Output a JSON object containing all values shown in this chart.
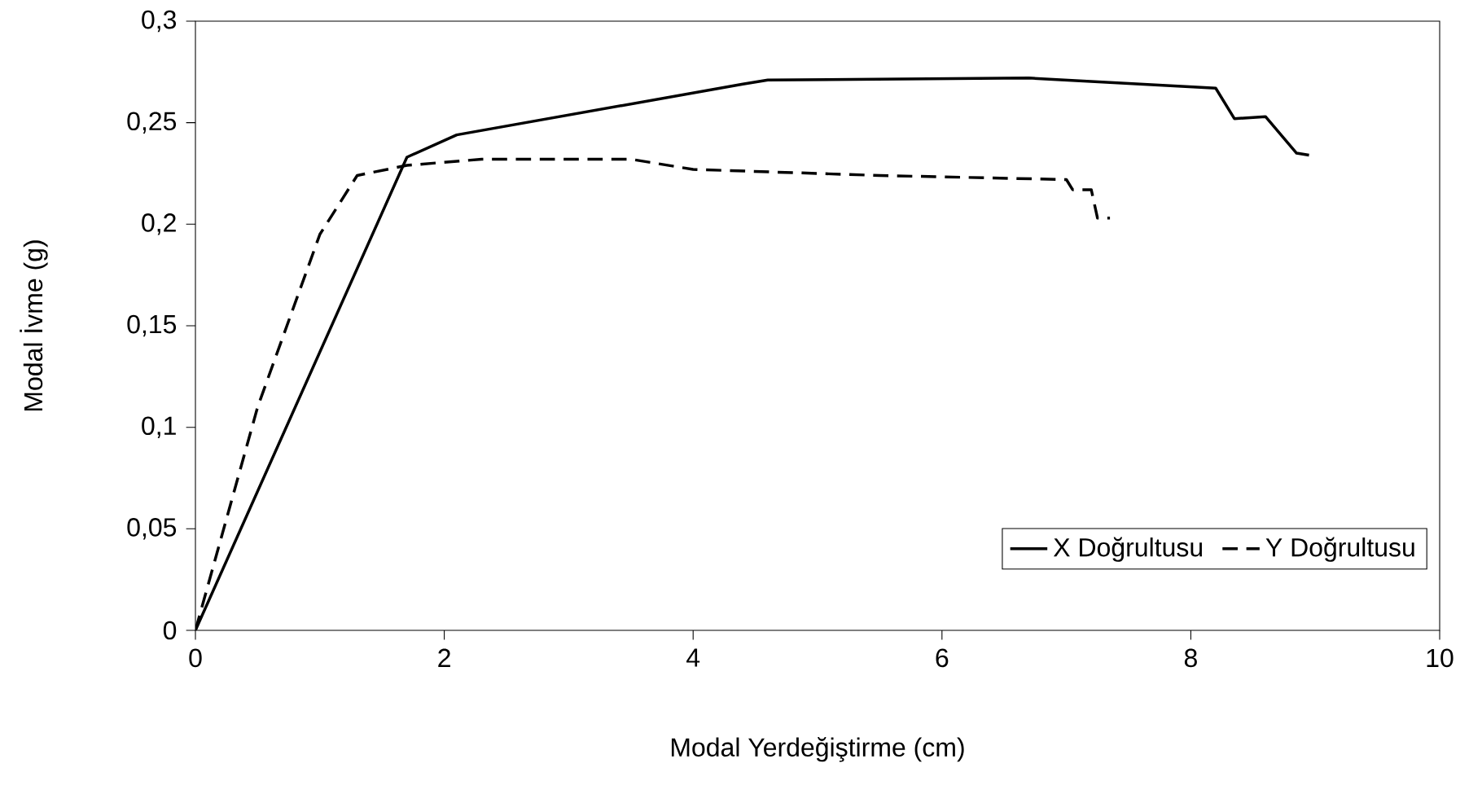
{
  "chart_data": {
    "type": "line",
    "xlabel": "Modal Yerdeğiştirme (cm)",
    "ylabel": "Modal İvme (g)",
    "xlim": [
      0,
      10
    ],
    "xticks": [
      0,
      2,
      4,
      6,
      8,
      10
    ],
    "ylim": [
      0,
      0.3
    ],
    "yticks": [
      0,
      {
        "value": 0.05,
        "label": "0,05"
      },
      {
        "value": 0.1,
        "label": "0,1"
      },
      {
        "value": 0.15,
        "label": "0,15"
      },
      {
        "value": 0.2,
        "label": "0,2"
      },
      {
        "value": 0.25,
        "label": "0,25"
      },
      {
        "value": 0.3,
        "label": "0,3"
      }
    ],
    "grid": false,
    "legend": "bottom right",
    "marker": "none",
    "series": [
      {
        "name": "X Doğrultusu",
        "color": "#000000",
        "line_style": "solid",
        "x": [
          0,
          1.7,
          2.1,
          4.4,
          4.6,
          6.7,
          8.2,
          8.35,
          8.6,
          8.85,
          8.95
        ],
        "values": [
          0,
          0.233,
          0.244,
          0.269,
          0.271,
          0.272,
          0.267,
          0.252,
          0.253,
          0.235,
          0.234
        ]
      },
      {
        "name": "Y Doğrultusu",
        "color": "#000000",
        "line_style": "dashed",
        "x": [
          0,
          0.5,
          1.0,
          1.3,
          1.7,
          2.3,
          3.5,
          4.0,
          5.5,
          7.0,
          7.05,
          7.2,
          7.25,
          7.35
        ],
        "values": [
          0,
          0.11,
          0.195,
          0.224,
          0.229,
          0.232,
          0.232,
          0.227,
          0.224,
          0.222,
          0.217,
          0.217,
          0.203,
          0.203
        ]
      }
    ]
  }
}
